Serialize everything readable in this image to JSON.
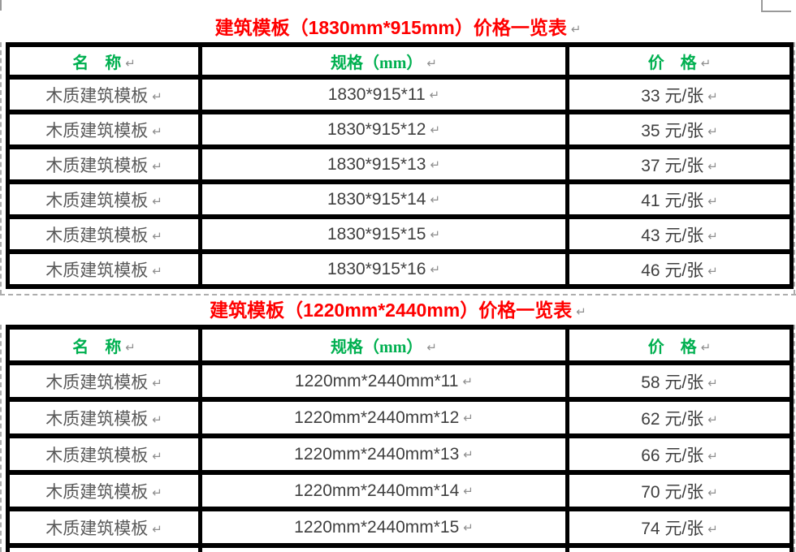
{
  "doc": {
    "pilcrow": "↵"
  },
  "colors": {
    "title_red": "#FF0000",
    "header_green": "#00B050",
    "body_text": "#3F3F3F",
    "name_text": "#595959",
    "formatting_mark_grey": "#8F8F8F",
    "table_border": "#000000",
    "text_boundary_dash": "#ADADAD"
  },
  "table1": {
    "title": "建筑模板（1830mm*915mm）价格一览表",
    "headers": {
      "name": "名　称",
      "spec": "规格（mm）",
      "price": "价　格"
    },
    "rows": [
      {
        "name": "木质建筑模板",
        "spec": "1830*915*11",
        "price": "33 元/张"
      },
      {
        "name": "木质建筑模板",
        "spec": "1830*915*12",
        "price": "35 元/张"
      },
      {
        "name": "木质建筑模板",
        "spec": "1830*915*13",
        "price": "37 元/张"
      },
      {
        "name": "木质建筑模板",
        "spec": "1830*915*14",
        "price": "41 元/张"
      },
      {
        "name": "木质建筑模板",
        "spec": "1830*915*15",
        "price": "43 元/张"
      },
      {
        "name": "木质建筑模板",
        "spec": "1830*915*16",
        "price": "46 元/张"
      }
    ]
  },
  "table2": {
    "title": "建筑模板（1220mm*2440mm）价格一览表",
    "headers": {
      "name": "名　称",
      "spec": "规格（mm）",
      "price": "价　格"
    },
    "rows": [
      {
        "name": "木质建筑模板",
        "spec": "1220mm*2440mm*11",
        "price": "58 元/张"
      },
      {
        "name": "木质建筑模板",
        "spec": "1220mm*2440mm*12",
        "price": "62 元/张"
      },
      {
        "name": "木质建筑模板",
        "spec": "1220mm*2440mm*13",
        "price": "66 元/张"
      },
      {
        "name": "木质建筑模板",
        "spec": "1220mm*2440mm*14",
        "price": "70 元/张"
      },
      {
        "name": "木质建筑模板",
        "spec": "1220mm*2440mm*15",
        "price": "74 元/张"
      },
      {
        "name": "",
        "spec": "",
        "price": ""
      }
    ]
  }
}
